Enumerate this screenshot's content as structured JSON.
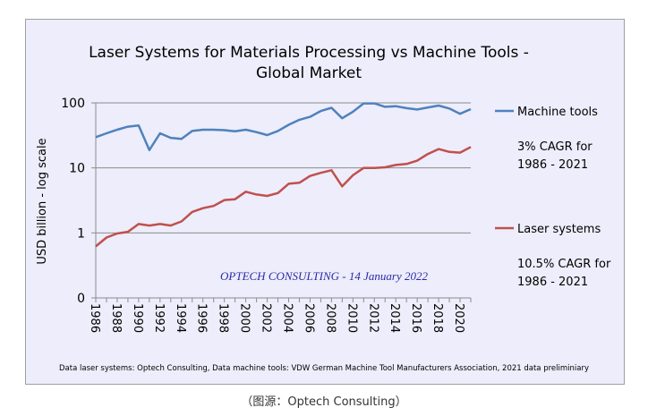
{
  "chart_data": {
    "type": "line",
    "title_line1": "Laser Systems for Materials Processing vs Machine Tools -",
    "title_line2": "Global Market",
    "ylabel": "USD billion - log scale",
    "xlabel": "",
    "y_scale": "log",
    "ylim": [
      0.1,
      100
    ],
    "y_ticks": [
      {
        "value": 100,
        "label": "100"
      },
      {
        "value": 10,
        "label": "10"
      },
      {
        "value": 1,
        "label": "1"
      },
      {
        "value": 0.1,
        "label": "0"
      }
    ],
    "x_tick_labels": [
      "1986",
      "1988",
      "1990",
      "1992",
      "1994",
      "1996",
      "1998",
      "2000",
      "2002",
      "2004",
      "2006",
      "2008",
      "2010",
      "2012",
      "2014",
      "2016",
      "2018",
      "2020"
    ],
    "x": [
      1986,
      1987,
      1988,
      1989,
      1990,
      1991,
      1992,
      1993,
      1994,
      1995,
      1996,
      1997,
      1998,
      1999,
      2000,
      2001,
      2002,
      2003,
      2004,
      2005,
      2006,
      2007,
      2008,
      2009,
      2010,
      2011,
      2012,
      2013,
      2014,
      2015,
      2016,
      2017,
      2018,
      2019,
      2020,
      2021
    ],
    "grid": "horizontal",
    "legend_placement": "right",
    "series": [
      {
        "name": "Machine tools",
        "color": "#4f81bd",
        "note_line1": "3% CAGR for",
        "note_line2": "1986 - 2021",
        "values": [
          29.7,
          34,
          38.6,
          43,
          45,
          18.8,
          34,
          29,
          28,
          37,
          38.6,
          38.6,
          38,
          36.6,
          38.6,
          35.5,
          32,
          37,
          46,
          55,
          61,
          75,
          84,
          58,
          73,
          98,
          98,
          87,
          89,
          83,
          79,
          85,
          91,
          82,
          68,
          80
        ]
      },
      {
        "name": "Laser systems",
        "color": "#c0504d",
        "note_line1": "10.5% CAGR for",
        "note_line2": "1986 - 2021",
        "values": [
          0.62,
          0.85,
          0.98,
          1.04,
          1.37,
          1.3,
          1.37,
          1.3,
          1.5,
          2.1,
          2.4,
          2.6,
          3.2,
          3.3,
          4.3,
          3.9,
          3.7,
          4.1,
          5.7,
          5.9,
          7.5,
          8.4,
          9.2,
          5.2,
          7.7,
          10,
          10,
          10.2,
          11.1,
          11.5,
          12.9,
          16.4,
          19.5,
          17.6,
          17.2,
          21
        ]
      }
    ],
    "annotation": "OPTECH  CONSULTING  - 14 January 2022",
    "annotation_color": "#2a2aa8",
    "footnote": "Data laser systems: Optech Consulting, Data machine tools: VDW German Machine Tool Manufacturers Association, 2021 data preliminiary"
  },
  "caption": "（图源：Optech Consulting）"
}
